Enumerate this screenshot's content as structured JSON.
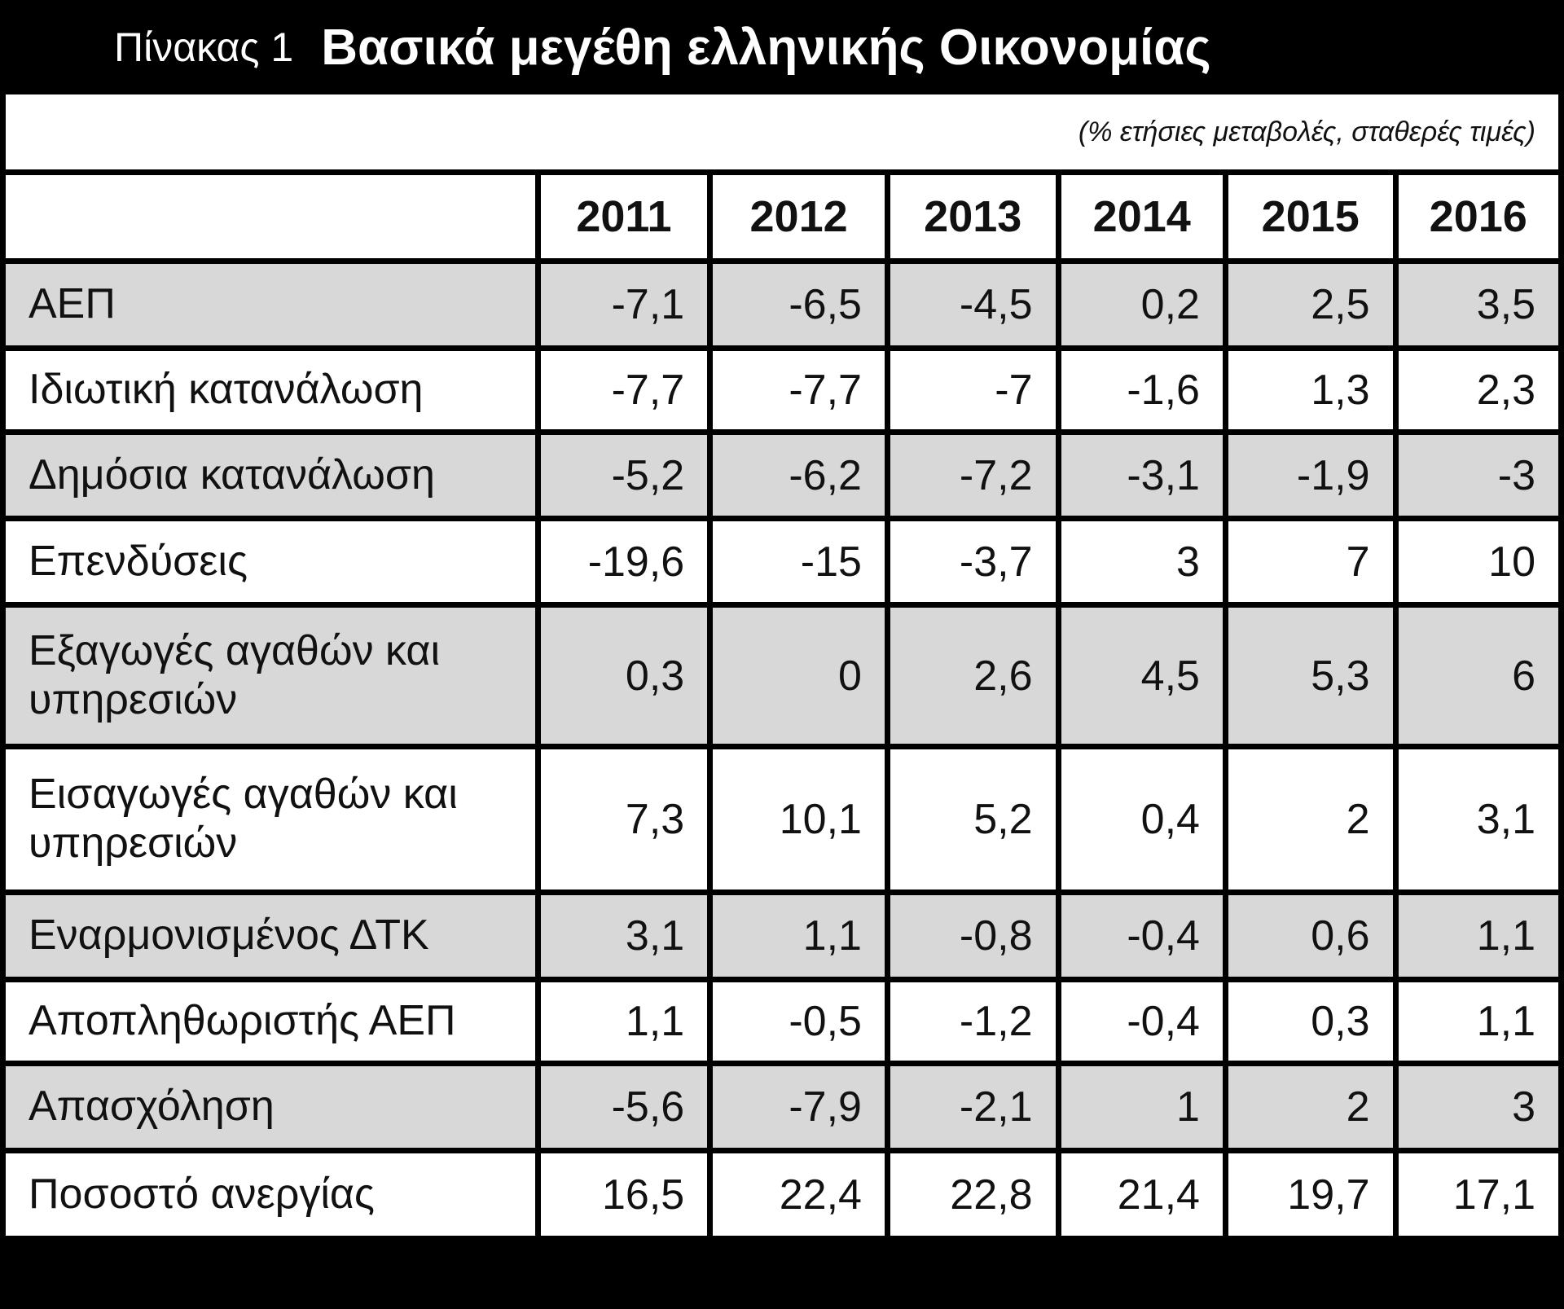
{
  "header": {
    "label": "Πίνακας 1",
    "title": "Βασικά μεγέθη ελληνικής Οικονομίας",
    "subtitle": "(% ετήσιες μεταβολές, σταθερές τιμές)"
  },
  "table": {
    "columns": [
      "2011",
      "2012",
      "2013",
      "2014",
      "2015",
      "2016"
    ],
    "rows": [
      [
        "ΑΕΠ",
        "-7,1",
        "-6,5",
        "-4,5",
        "0,2",
        "2,5",
        "3,5"
      ],
      [
        "Ιδιωτική κατανάλωση",
        "-7,7",
        "-7,7",
        "-7",
        "-1,6",
        "1,3",
        "2,3"
      ],
      [
        "Δημόσια κατανάλωση",
        "-5,2",
        "-6,2",
        "-7,2",
        "-3,1",
        "-1,9",
        "-3"
      ],
      [
        "Επενδύσεις",
        "-19,6",
        "-15",
        "-3,7",
        "3",
        "7",
        "10"
      ],
      [
        "Εξαγωγές αγαθών και υπηρεσιών",
        "0,3",
        "0",
        "2,6",
        "4,5",
        "5,3",
        "6"
      ],
      [
        "Εισαγωγές αγαθών και υπηρεσιών",
        "7,3",
        "10,1",
        "5,2",
        "0,4",
        "2",
        "3,1"
      ],
      [
        "Εναρμονισμένος ΔΤΚ",
        "3,1",
        "1,1",
        "-0,8",
        "-0,4",
        "0,6",
        "1,1"
      ],
      [
        "Αποπληθωριστής ΑΕΠ",
        "1,1",
        "-0,5",
        "-1,2",
        "-0,4",
        "0,3",
        "1,1"
      ],
      [
        "Απασχόληση",
        "-5,6",
        "-7,9",
        "-2,1",
        "1",
        "2",
        "3"
      ],
      [
        "Ποσοστό ανεργίας",
        "16,5",
        "22,4",
        "22,8",
        "21,4",
        "19,7",
        "17,1"
      ]
    ]
  }
}
